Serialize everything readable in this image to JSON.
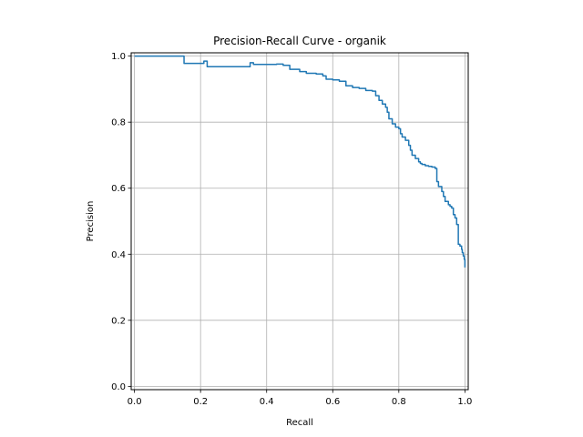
{
  "chart_data": {
    "type": "line",
    "title": "Precision-Recall Curve - organik",
    "xlabel": "Recall",
    "ylabel": "Precision",
    "xlim": [
      -0.01,
      1.01
    ],
    "ylim": [
      -0.01,
      1.01
    ],
    "xticks": [
      "0.0",
      "0.2",
      "0.4",
      "0.6",
      "0.8",
      "1.0"
    ],
    "yticks": [
      "0.0",
      "0.2",
      "0.4",
      "0.6",
      "0.8",
      "1.0"
    ],
    "grid": true,
    "legend": "none",
    "series_color": "#1f77b4",
    "series": [
      {
        "points": [
          [
            0.0,
            1.0
          ],
          [
            0.15,
            1.0
          ],
          [
            0.15,
            0.978
          ],
          [
            0.21,
            0.985
          ],
          [
            0.22,
            0.968
          ],
          [
            0.35,
            0.98
          ],
          [
            0.36,
            0.975
          ],
          [
            0.43,
            0.976
          ],
          [
            0.45,
            0.972
          ],
          [
            0.47,
            0.96
          ],
          [
            0.5,
            0.953
          ],
          [
            0.52,
            0.948
          ],
          [
            0.55,
            0.946
          ],
          [
            0.57,
            0.94
          ],
          [
            0.58,
            0.93
          ],
          [
            0.6,
            0.928
          ],
          [
            0.62,
            0.924
          ],
          [
            0.64,
            0.91
          ],
          [
            0.66,
            0.905
          ],
          [
            0.68,
            0.902
          ],
          [
            0.7,
            0.896
          ],
          [
            0.72,
            0.894
          ],
          [
            0.73,
            0.88
          ],
          [
            0.74,
            0.866
          ],
          [
            0.75,
            0.855
          ],
          [
            0.76,
            0.845
          ],
          [
            0.765,
            0.83
          ],
          [
            0.77,
            0.81
          ],
          [
            0.78,
            0.795
          ],
          [
            0.79,
            0.785
          ],
          [
            0.8,
            0.78
          ],
          [
            0.805,
            0.765
          ],
          [
            0.81,
            0.755
          ],
          [
            0.82,
            0.745
          ],
          [
            0.83,
            0.73
          ],
          [
            0.835,
            0.715
          ],
          [
            0.84,
            0.7
          ],
          [
            0.85,
            0.69
          ],
          [
            0.86,
            0.68
          ],
          [
            0.865,
            0.675
          ],
          [
            0.87,
            0.672
          ],
          [
            0.88,
            0.668
          ],
          [
            0.89,
            0.666
          ],
          [
            0.9,
            0.664
          ],
          [
            0.91,
            0.66
          ],
          [
            0.915,
            0.62
          ],
          [
            0.92,
            0.605
          ],
          [
            0.93,
            0.59
          ],
          [
            0.935,
            0.575
          ],
          [
            0.94,
            0.56
          ],
          [
            0.95,
            0.55
          ],
          [
            0.955,
            0.545
          ],
          [
            0.96,
            0.54
          ],
          [
            0.965,
            0.52
          ],
          [
            0.97,
            0.51
          ],
          [
            0.975,
            0.49
          ],
          [
            0.98,
            0.43
          ],
          [
            0.985,
            0.425
          ],
          [
            0.99,
            0.415
          ],
          [
            0.992,
            0.405
          ],
          [
            0.995,
            0.395
          ],
          [
            0.998,
            0.385
          ],
          [
            1.0,
            0.36
          ]
        ]
      }
    ]
  }
}
